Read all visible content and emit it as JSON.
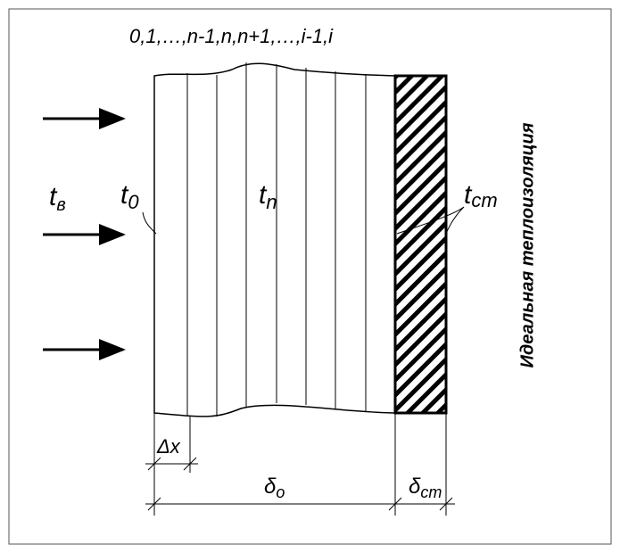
{
  "header": {
    "title": "0,1,…,n-1,n,n+1,…,i-1,i"
  },
  "labels": {
    "t_air": {
      "main": "t",
      "sub": "в"
    },
    "t_0": {
      "main": "t",
      "sub": "0"
    },
    "t_n": {
      "main": "t",
      "sub": "n"
    },
    "t_wall": {
      "main": "t",
      "sub": "ст"
    },
    "insulation": "Идеальная теплоизоляция"
  },
  "dimensions": {
    "dx": "Δx",
    "delta_o": {
      "main": "δ",
      "sub": "o"
    },
    "delta_wall": {
      "main": "δ",
      "sub": "ст"
    }
  }
}
